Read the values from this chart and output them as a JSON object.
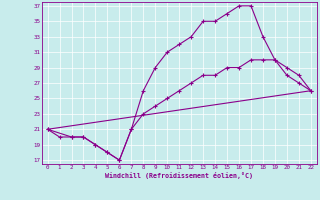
{
  "xlabel": "Windchill (Refroidissement éolien,°C)",
  "background_color": "#c8ecec",
  "line_color": "#8b008b",
  "xmin": 0,
  "xmax": 22,
  "ymin": 17,
  "ymax": 37,
  "yticks": [
    17,
    19,
    21,
    23,
    25,
    27,
    29,
    31,
    33,
    35,
    37
  ],
  "xticks": [
    0,
    1,
    2,
    3,
    4,
    5,
    6,
    7,
    8,
    9,
    10,
    11,
    12,
    13,
    14,
    15,
    16,
    17,
    18,
    19,
    20,
    21,
    22
  ],
  "line1_x": [
    0,
    1,
    2,
    3,
    4,
    5,
    6,
    7,
    8,
    9,
    10,
    11,
    12,
    13,
    14,
    15,
    16,
    17,
    18,
    19,
    20,
    21,
    22
  ],
  "line1_y": [
    21,
    20,
    20,
    20,
    19,
    18,
    17,
    21,
    26,
    29,
    31,
    32,
    33,
    35,
    35,
    36,
    37,
    37,
    33,
    30,
    28,
    27,
    26
  ],
  "line2_x": [
    0,
    2,
    3,
    4,
    5,
    6,
    7,
    8,
    9,
    10,
    11,
    12,
    13,
    14,
    15,
    16,
    17,
    18,
    19,
    20,
    21,
    22
  ],
  "line2_y": [
    21,
    20,
    20,
    19,
    18,
    17,
    21,
    23,
    24,
    25,
    26,
    27,
    28,
    28,
    29,
    29,
    30,
    30,
    30,
    29,
    28,
    26
  ],
  "line3_x": [
    0,
    22
  ],
  "line3_y": [
    21,
    26
  ]
}
